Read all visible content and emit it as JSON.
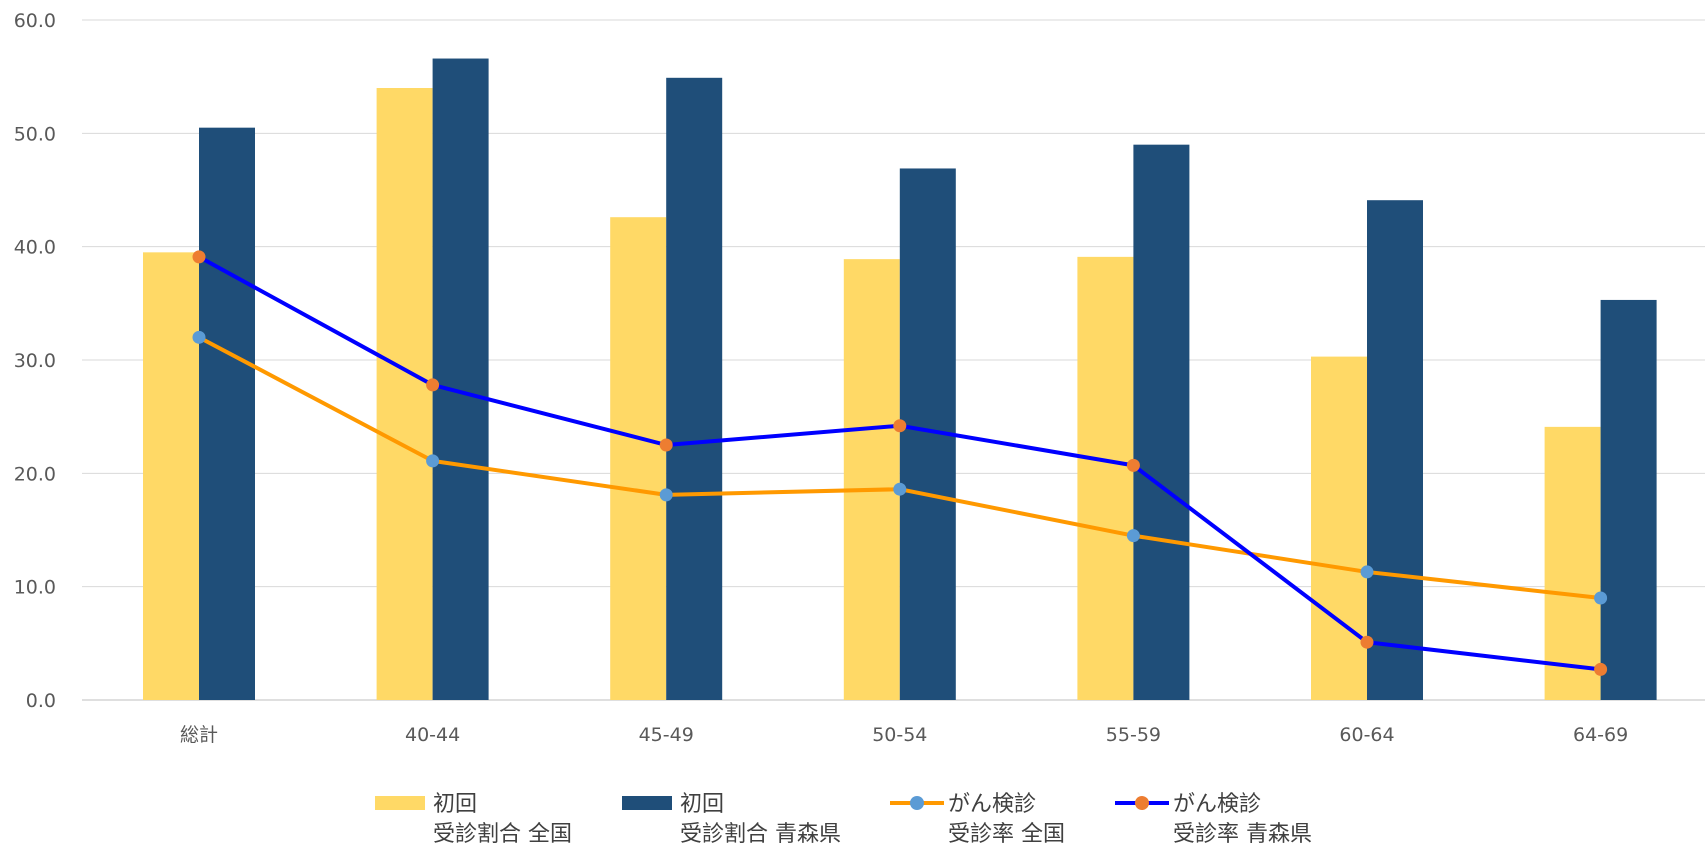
{
  "chart_data": {
    "type": "bar",
    "categories": [
      "総計",
      "40-44",
      "45-49",
      "50-54",
      "55-59",
      "60-64",
      "64-69"
    ],
    "ylim": [
      0,
      60
    ],
    "yticks": [
      "0.0",
      "10.0",
      "20.0",
      "30.0",
      "40.0",
      "50.0",
      "60.0"
    ],
    "grid": true,
    "legend_position": "bottom",
    "series": [
      {
        "name_line1": "初回",
        "name_line2": "受診割合 全国",
        "kind": "bar",
        "color": "#FFD966",
        "values": [
          39.5,
          54.0,
          42.6,
          38.9,
          39.1,
          30.3,
          24.1
        ]
      },
      {
        "name_line1": "初回",
        "name_line2": "受診割合 青森県",
        "kind": "bar",
        "color": "#1F4E79",
        "values": [
          50.5,
          56.6,
          54.9,
          46.9,
          49.0,
          44.1,
          35.3
        ]
      },
      {
        "name_line1": "がん検診",
        "name_line2": "受診率 全国",
        "kind": "line",
        "color": "#FF9900",
        "marker_color": "#5B9BD5",
        "values": [
          32.0,
          21.1,
          18.1,
          18.6,
          14.5,
          11.3,
          9.0
        ]
      },
      {
        "name_line1": "がん検診",
        "name_line2": "受診率 青森県",
        "kind": "line",
        "color": "#0000FF",
        "marker_color": "#ED7D31",
        "values": [
          39.1,
          27.8,
          22.5,
          24.2,
          20.7,
          5.1,
          2.7
        ]
      }
    ]
  }
}
